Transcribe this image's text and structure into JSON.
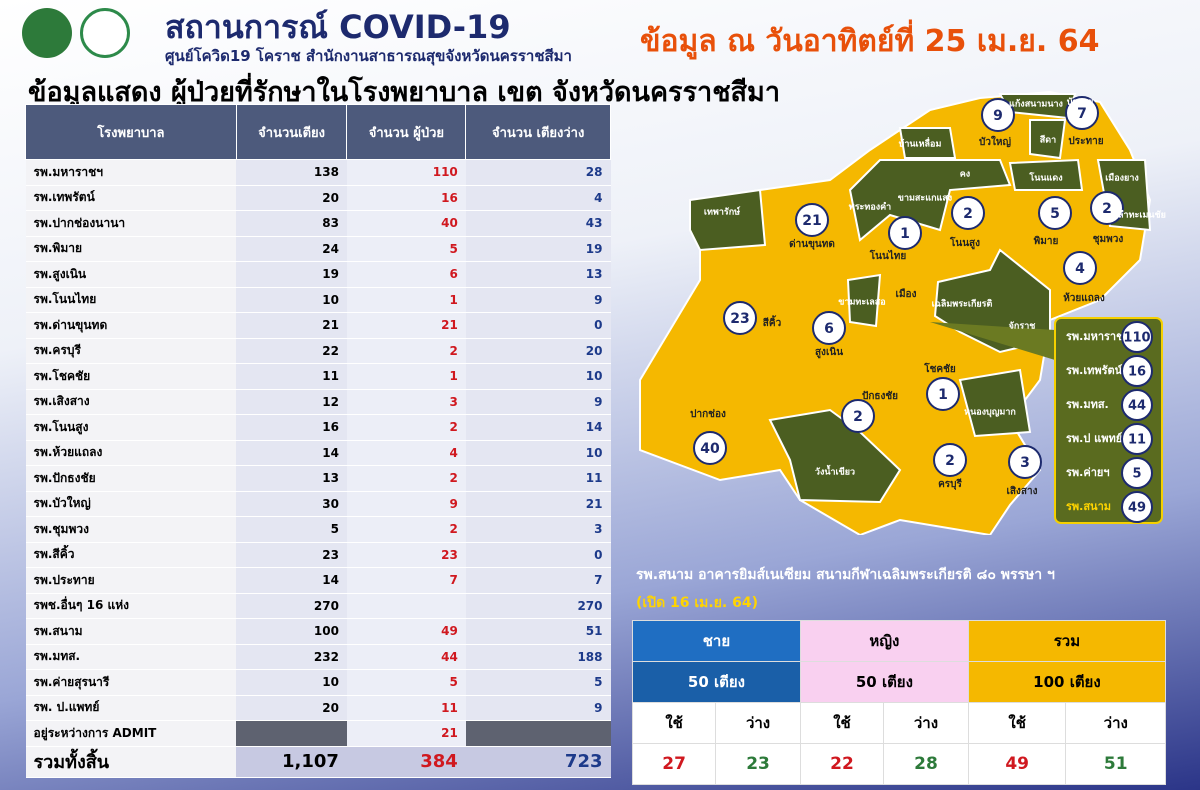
{
  "header": {
    "title": "สถานการณ์ COVID-19",
    "subtitle": "ศูนย์โควิด19 โคราช สำนักงานสาธารณสุขจังหวัดนครราชสีมา",
    "date": "ข้อมูล ณ วันอาทิตย์ที่ 25 เม.ย. 64",
    "heading": "ข้อมูลแสดง  ผู้ป่วยที่รักษาในโรงพยาบาล เขต จังหวัดนครราชสีมา"
  },
  "table": {
    "columns": [
      "โรงพยาบาล",
      "จำนวนเตียง",
      "จำนวน ผู้ป่วย",
      "จำนวน เตียงว่าง"
    ],
    "rows": [
      [
        "รพ.มหาราชฯ",
        138,
        110,
        28
      ],
      [
        "รพ.เทพรัตน์",
        20,
        16,
        4
      ],
      [
        "รพ.ปากช่องนานา",
        83,
        40,
        43
      ],
      [
        "รพ.พิมาย",
        24,
        5,
        19
      ],
      [
        "รพ.สูงเนิน",
        19,
        6,
        13
      ],
      [
        "รพ.โนนไทย",
        10,
        1,
        9
      ],
      [
        "รพ.ด่านขุนทด",
        21,
        21,
        0
      ],
      [
        "รพ.ครบุรี",
        22,
        2,
        20
      ],
      [
        "รพ.โชคชัย",
        11,
        1,
        10
      ],
      [
        "รพ.เสิงสาง",
        12,
        3,
        9
      ],
      [
        "รพ.โนนสูง",
        16,
        2,
        14
      ],
      [
        "รพ.ห้วยแถลง",
        14,
        4,
        10
      ],
      [
        "รพ.ปักธงชัย",
        13,
        2,
        11
      ],
      [
        "รพ.บัวใหญ่",
        30,
        9,
        21
      ],
      [
        "รพ.ชุมพวง",
        5,
        2,
        3
      ],
      [
        "รพ.สีคิ้ว",
        23,
        23,
        0
      ],
      [
        "รพ.ประทาย",
        14,
        7,
        7
      ],
      [
        "รพช.อื่นๆ 16 แห่ง",
        270,
        null,
        270
      ],
      [
        "รพ.สนาม",
        100,
        49,
        51
      ],
      [
        "รพ.มทส.",
        232,
        44,
        188
      ],
      [
        "รพ.ค่ายสุรนารี",
        10,
        5,
        5
      ],
      [
        "รพ. ป.แพทย์",
        20,
        11,
        9
      ],
      [
        "อยู่ระหว่างการ ADMIT",
        null,
        21,
        null
      ]
    ],
    "total": [
      "รวมทั้งสิ้น",
      "1,107",
      384,
      723
    ]
  },
  "map": {
    "districts": [
      {
        "label": "ด่านขุนทด",
        "count": 21
      },
      {
        "label": "สีคิ้ว",
        "count": 23
      },
      {
        "label": "สูงเนิน",
        "count": 6
      },
      {
        "label": "ปากช่อง",
        "count": 40
      },
      {
        "label": "โนนไทย",
        "count": 1
      },
      {
        "label": "โนนสูง",
        "count": 2
      },
      {
        "label": "บัวใหญ่",
        "count": 9
      },
      {
        "label": "ประทาย",
        "count": 7
      },
      {
        "label": "พิมาย",
        "count": 5
      },
      {
        "label": "ชุมพวง",
        "count": 2
      },
      {
        "label": "ห้วยแถลง",
        "count": 4
      },
      {
        "label": "ปักธงชัย",
        "count": 2
      },
      {
        "label": "โชคชัย",
        "count": 1
      },
      {
        "label": "ครบุรี",
        "count": 2
      },
      {
        "label": "เสิงสาง",
        "count": 3
      },
      {
        "label": "เมือง"
      }
    ],
    "other_districts": [
      "เทพารักษ์",
      "พระทองคำ",
      "ขามสะแกแสง",
      "แก้งสนามนาง",
      "บ้านเหลื่อม",
      "คง",
      "สีดา",
      "บัวลาย",
      "โนนแดง",
      "เมืองยาง",
      "ลำทะเมนชัย",
      "ขามทะเลสอ",
      "เฉลิมพระเกียรติ",
      "จักราช",
      "หนองบุญมาก",
      "วังน้ำเขียว"
    ],
    "callout": [
      {
        "label": "รพ.มหาราชฯ",
        "count": 110
      },
      {
        "label": "รพ.เทพรัตน์",
        "count": 16
      },
      {
        "label": "รพ.มทส.",
        "count": 44
      },
      {
        "label": "รพ.ป แพทย์",
        "count": 11
      },
      {
        "label": "รพ.ค่ายฯ",
        "count": 5
      },
      {
        "label": "รพ.สนาม",
        "count": 49
      }
    ]
  },
  "field_hospital": {
    "note": "รพ.สนาม อาคารยิมส์เนเซียม  สนามกีฬาเฉลิมพระเกียรติ ๘๐ พรรษา ฯ",
    "opened": "(เปิด 16 เม.ย. 64)",
    "groups": [
      {
        "name": "ชาย",
        "beds": "50 เตียง",
        "used_label": "ใช้",
        "free_label": "ว่าง",
        "used": 27,
        "free": 23
      },
      {
        "name": "หญิง",
        "beds": "50 เตียง",
        "used_label": "ใช้",
        "free_label": "ว่าง",
        "used": 22,
        "free": 28
      },
      {
        "name": "รวม",
        "beds": "100 เตียง",
        "used_label": "ใช้",
        "free_label": "ว่าง",
        "used": 49,
        "free": 51
      }
    ]
  }
}
